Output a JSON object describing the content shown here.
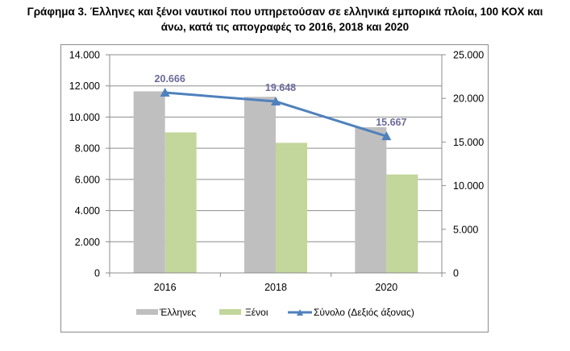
{
  "title_line1": "Γράφημα 3. Έλληνες και ξένοι ναυτικοί που υπηρετούσαν σε ελληνικά εμπορικά πλοία, 100 ΚΟΧ και",
  "title_line2": "άνω, κατά τις απογραφές το 2016, 2018 και 2020",
  "colors": {
    "greeks": "#bfbfbf",
    "foreigners": "#c3d69b",
    "total": "#4f81bd",
    "data_label": "#6a6a9a",
    "grid": "#8c8c8c"
  },
  "chart_data": {
    "type": "bar",
    "title": "Γράφημα 3. Έλληνες και ξένοι ναυτικοί που υπηρετούσαν σε ελληνικά εμπορικά πλοία, 100 ΚΟΧ και άνω, κατά τις απογραφές το 2016, 2018 και 2020",
    "categories": [
      "2016",
      "2018",
      "2020"
    ],
    "series": [
      {
        "name": "Έλληνες",
        "type": "bar",
        "axis": "left",
        "values": [
          11650,
          11300,
          9350
        ]
      },
      {
        "name": "Ξένοι",
        "type": "bar",
        "axis": "left",
        "values": [
          9016,
          8348,
          6317
        ]
      },
      {
        "name": "Σύνολο (Δεξιός άξονας)",
        "type": "line",
        "axis": "right",
        "values": [
          20666,
          19648,
          15667
        ],
        "data_labels": [
          "20.666",
          "19.648",
          "15.667"
        ]
      }
    ],
    "xlabel": "",
    "ylabel": "",
    "ylim": [
      0,
      14000
    ],
    "y_ticks": [
      "0",
      "2.000",
      "4.000",
      "6.000",
      "8.000",
      "10.000",
      "12.000",
      "14.000"
    ],
    "y2lim": [
      0,
      25000
    ],
    "y2_ticks": [
      "0",
      "5.000",
      "10.000",
      "15.000",
      "20.000",
      "25.000"
    ],
    "grid": true,
    "legend": "bottom"
  }
}
